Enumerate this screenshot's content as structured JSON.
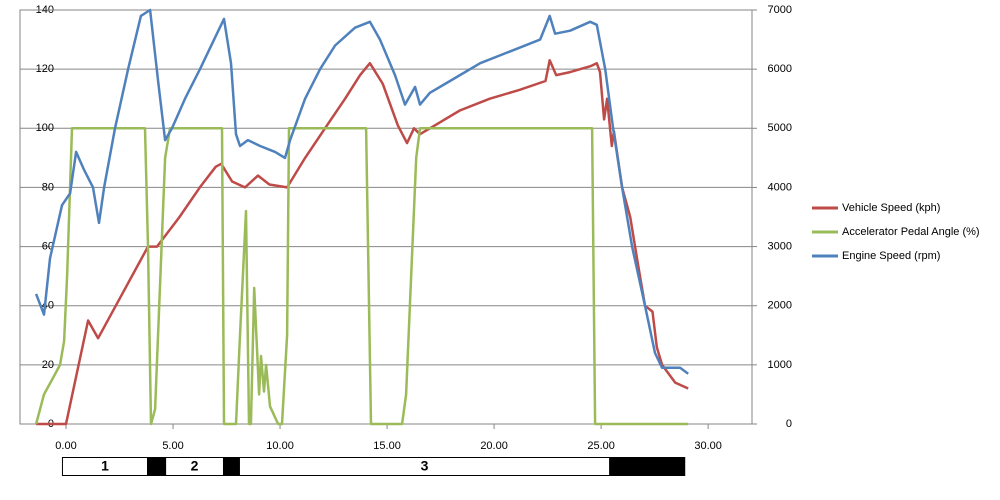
{
  "chart_data": {
    "type": "line",
    "xlim": [
      -2.15,
      32.05
    ],
    "xticks": [
      {
        "value": 0,
        "label": "0.00"
      },
      {
        "value": 5,
        "label": "5.00"
      },
      {
        "value": 10,
        "label": "10.00"
      },
      {
        "value": 15,
        "label": "15.00"
      },
      {
        "value": 20,
        "label": "20.00"
      },
      {
        "value": 25,
        "label": "25.00"
      },
      {
        "value": 30,
        "label": "30.00"
      }
    ],
    "ylim": [
      0,
      140
    ],
    "yticks": [
      0,
      20,
      40,
      60,
      80,
      100,
      120,
      140
    ],
    "y2lim": [
      0,
      7000
    ],
    "y2ticks": [
      0,
      1000,
      2000,
      3000,
      4000,
      5000,
      6000,
      7000
    ],
    "grid": true,
    "legend": "right",
    "series": [
      {
        "name": "Vehicle Speed (kph)",
        "color": "#be4b48",
        "x": [
          -1.4,
          0,
          1.03,
          1.5,
          3.83,
          4.25,
          5.3,
          6.25,
          7.0,
          7.25,
          7.76,
          8.36,
          8.97,
          9.5,
          10.33,
          11.17,
          12.1,
          13.04,
          13.74,
          14.2,
          14.8,
          15.5,
          15.93,
          16.26,
          16.54,
          17.24,
          18.4,
          19.8,
          21.2,
          22.4,
          22.6,
          22.9,
          23.55,
          24.5,
          24.8,
          24.95,
          25.14,
          25.28,
          25.5,
          25.6,
          25.98,
          26.36,
          26.7,
          27.05,
          27.4,
          27.6,
          27.85,
          28.46,
          29.07
        ],
        "values": [
          0,
          0,
          35,
          29,
          60,
          60,
          70,
          80,
          87,
          88,
          82,
          80,
          84,
          81,
          80,
          90,
          100,
          110,
          118,
          122,
          115,
          101,
          95,
          100,
          98,
          101,
          106,
          110,
          113,
          116,
          123,
          118,
          119,
          121,
          122,
          119,
          103,
          110,
          94,
          99,
          80,
          70,
          55,
          40,
          38,
          26,
          20,
          14,
          12
        ]
      },
      {
        "name": "Accelerator Pedal Angle (%)",
        "color": "#9bbb59",
        "x": [
          -1.4,
          -1.03,
          -0.65,
          -0.28,
          -0.09,
          0.05,
          0.28,
          3.69,
          3.83,
          3.97,
          4.16,
          4.63,
          4.86,
          7.29,
          7.38,
          7.94,
          8.13,
          8.41,
          8.55,
          8.64,
          8.79,
          9.02,
          9.11,
          9.25,
          9.35,
          9.53,
          9.91,
          10.09,
          10.33,
          10.42,
          14.02,
          14.25,
          15.7,
          15.89,
          16.36,
          16.54,
          24.58,
          24.72,
          29.07
        ],
        "values": [
          0,
          10,
          15,
          20,
          28,
          50,
          100,
          100,
          60,
          0,
          5,
          90,
          100,
          100,
          0,
          0,
          30,
          72,
          0,
          0,
          46,
          10,
          23,
          11,
          20,
          6,
          0,
          0,
          30,
          100,
          100,
          0,
          0,
          10,
          90,
          100,
          100,
          0,
          0
        ]
      },
      {
        "name": "Engine Speed (rpm)",
        "color": "#4f81bd",
        "axis": "y2",
        "x": [
          -1.4,
          -1.03,
          -0.75,
          -0.19,
          0.19,
          0.47,
          0.84,
          1.26,
          1.54,
          1.78,
          2.29,
          2.9,
          3.5,
          3.93,
          4.3,
          4.63,
          4.95,
          5.56,
          6.26,
          6.92,
          7.38,
          7.71,
          7.94,
          8.13,
          8.5,
          9.07,
          9.77,
          10.23,
          10.47,
          11.17,
          11.87,
          12.57,
          13.5,
          14.2,
          14.67,
          15.37,
          15.84,
          16.31,
          16.54,
          17.0,
          17.94,
          19.35,
          20.75,
          22.15,
          22.6,
          22.85,
          23.55,
          24.49,
          24.8,
          25.19,
          25.56,
          25.98,
          26.45,
          27.05,
          27.52,
          27.85,
          28.69,
          29.07
        ],
        "values": [
          2200,
          1850,
          2800,
          3700,
          3900,
          4600,
          4300,
          4000,
          3400,
          4000,
          5000,
          6000,
          6900,
          7000,
          5800,
          4800,
          5000,
          5500,
          6000,
          6500,
          6850,
          6100,
          4900,
          4700,
          4800,
          4700,
          4600,
          4500,
          4800,
          5500,
          6000,
          6400,
          6700,
          6800,
          6500,
          5900,
          5400,
          5700,
          5400,
          5600,
          5800,
          6100,
          6300,
          6500,
          6900,
          6600,
          6650,
          6800,
          6750,
          6000,
          5000,
          4000,
          3000,
          2000,
          1200,
          950,
          950,
          850
        ]
      }
    ],
    "phase_bar": {
      "range": [
        -0.19,
        28.93
      ],
      "segments": [
        {
          "label": "1",
          "start": -0.19,
          "end": 3.83
        },
        {
          "label": "2",
          "start": 4.63,
          "end": 7.38
        },
        {
          "label": "3",
          "start": 8.08,
          "end": 25.42
        }
      ]
    }
  }
}
